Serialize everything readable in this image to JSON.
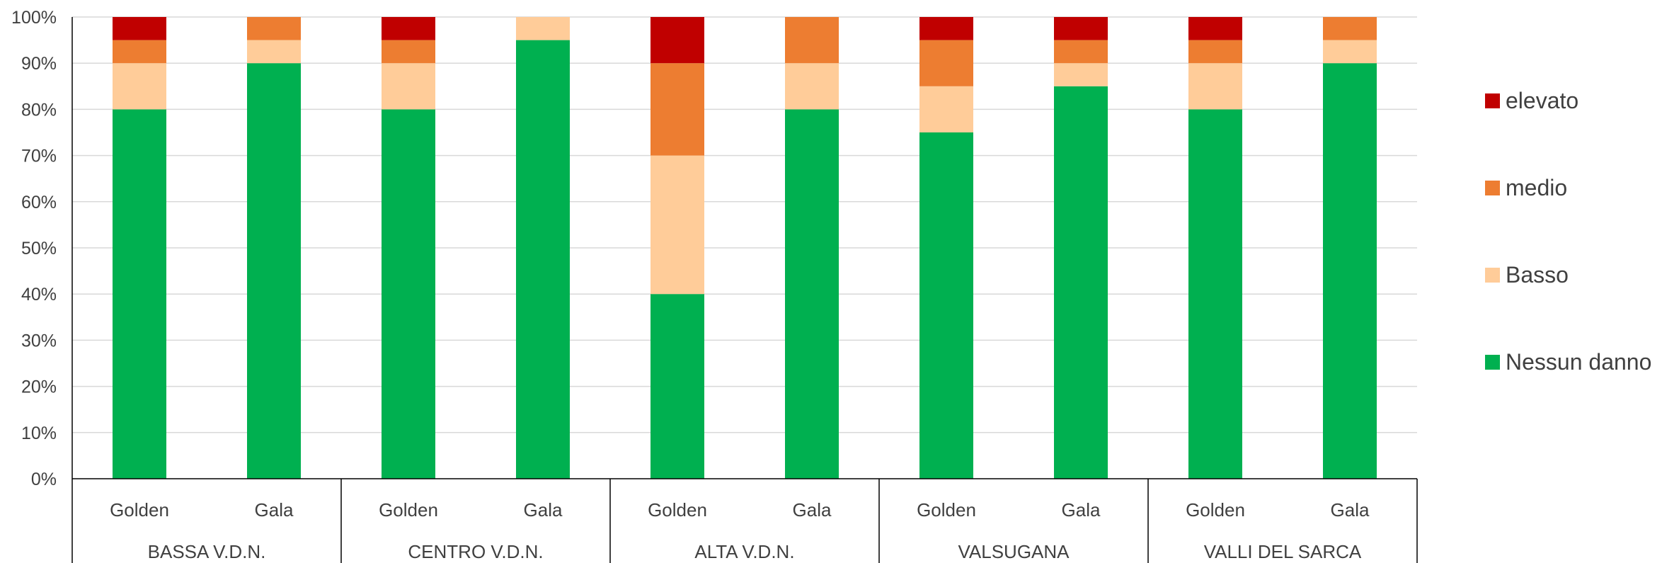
{
  "chart_data": {
    "type": "bar",
    "stacked": true,
    "percent": true,
    "title": "",
    "xlabel": "",
    "ylabel": "",
    "ylim": [
      0,
      100
    ],
    "yticks": [
      "0%",
      "10%",
      "20%",
      "30%",
      "40%",
      "50%",
      "60%",
      "70%",
      "80%",
      "90%",
      "100%"
    ],
    "grid": true,
    "legend_position": "right",
    "groups": [
      {
        "label": "BASSA V.D.N.",
        "categories": [
          "Golden",
          "Gala"
        ]
      },
      {
        "label": "CENTRO V.D.N.",
        "categories": [
          "Golden",
          "Gala"
        ]
      },
      {
        "label": "ALTA V.D.N.",
        "categories": [
          "Golden",
          "Gala"
        ]
      },
      {
        "label": "VALSUGANA",
        "categories": [
          "Golden",
          "Gala"
        ]
      },
      {
        "label": "VALLI DEL SARCA",
        "categories": [
          "Golden",
          "Gala"
        ]
      }
    ],
    "series": [
      {
        "name": "Nessun danno",
        "color": "#00B050",
        "values": [
          80,
          90,
          80,
          95,
          40,
          80,
          75,
          85,
          80,
          90
        ]
      },
      {
        "name": "Basso",
        "color": "#FFCC99",
        "values": [
          10,
          5,
          10,
          5,
          30,
          10,
          10,
          5,
          10,
          5
        ]
      },
      {
        "name": "medio",
        "color": "#ED7D31",
        "values": [
          5,
          5,
          5,
          0,
          20,
          10,
          10,
          5,
          5,
          5
        ]
      },
      {
        "name": "elevato",
        "color": "#C00000",
        "values": [
          5,
          0,
          5,
          0,
          10,
          0,
          5,
          5,
          5,
          0
        ]
      }
    ]
  }
}
